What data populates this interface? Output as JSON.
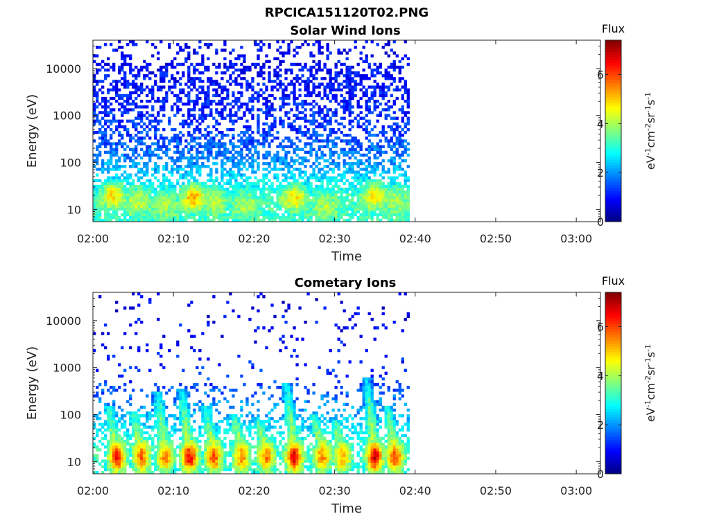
{
  "figure": {
    "title": "RPCICA151120T02.PNG"
  },
  "chart_data": [
    {
      "type": "heatmap",
      "title": "Solar Wind Ions",
      "xlabel": "Time",
      "ylabel": "Energy (eV)",
      "x_ticks": [
        "02:00",
        "02:10",
        "02:20",
        "02:30",
        "02:40",
        "02:50",
        "03:00"
      ],
      "y_ticks": [
        "10",
        "100",
        "1000",
        "10000"
      ],
      "y_scale": "log",
      "ylim": [
        5.5,
        40000
      ],
      "xlim_minutes": [
        0,
        63
      ],
      "data_end_minutes": 39.3,
      "colorbar": {
        "title": "Flux",
        "label_parts": [
          "eV",
          "-1",
          "cm",
          "-2",
          "sr",
          "-1",
          "s",
          "-1"
        ],
        "ticks": [
          "0",
          "2",
          "4",
          "6"
        ],
        "range": [
          0,
          7.4
        ],
        "colormap": "jet"
      },
      "background_profile": [
        {
          "energy": 6,
          "flux": 3.2
        },
        {
          "energy": 15,
          "flux": 3.3
        },
        {
          "energy": 40,
          "flux": 2.7
        },
        {
          "energy": 100,
          "flux": 2.0
        },
        {
          "energy": 300,
          "flux": 1.5
        },
        {
          "energy": 1000,
          "flux": 1.2
        },
        {
          "energy": 5000,
          "flux": 1.0
        },
        {
          "energy": 20000,
          "flux": 0.9
        }
      ],
      "enhancements": [
        {
          "t": 2.5,
          "energy": 20,
          "flux": 4.8
        },
        {
          "t": 5.5,
          "energy": 15,
          "flux": 4.2
        },
        {
          "t": 9.0,
          "energy": 12,
          "flux": 4.0
        },
        {
          "t": 12.5,
          "energy": 18,
          "flux": 5.2
        },
        {
          "t": 15.0,
          "energy": 15,
          "flux": 4.2
        },
        {
          "t": 19.0,
          "energy": 12,
          "flux": 4.0
        },
        {
          "t": 25.0,
          "energy": 18,
          "flux": 4.8
        },
        {
          "t": 29.0,
          "energy": 12,
          "flux": 4.0
        },
        {
          "t": 35.0,
          "energy": 20,
          "flux": 4.8
        },
        {
          "t": 37.5,
          "energy": 15,
          "flux": 4.0
        }
      ]
    },
    {
      "type": "heatmap",
      "title": "Cometary Ions",
      "xlabel": "Time",
      "ylabel": "Energy (eV)",
      "x_ticks": [
        "02:00",
        "02:10",
        "02:20",
        "02:30",
        "02:40",
        "02:50",
        "03:00"
      ],
      "y_ticks": [
        "10",
        "100",
        "1000",
        "10000"
      ],
      "y_scale": "log",
      "ylim": [
        5.5,
        40000
      ],
      "xlim_minutes": [
        0,
        63
      ],
      "data_end_minutes": 39.3,
      "colorbar": {
        "title": "Flux",
        "label_parts": [
          "eV",
          "-1",
          "cm",
          "-2",
          "sr",
          "-1",
          "s",
          "-1"
        ],
        "ticks": [
          "0",
          "2",
          "4",
          "6"
        ],
        "range": [
          0,
          7.4
        ],
        "colormap": "jet"
      },
      "background_profile": [
        {
          "energy": 6,
          "flux": 3.0
        },
        {
          "energy": 20,
          "flux": 3.2
        },
        {
          "energy": 60,
          "flux": 2.5
        },
        {
          "energy": 150,
          "flux": 2.0
        },
        {
          "energy": 500,
          "flux": 1.3
        },
        {
          "energy": 3000,
          "flux": 1.0
        },
        {
          "energy": 20000,
          "flux": 0.8
        }
      ],
      "bursts": [
        {
          "t": 3.0,
          "peak_flux": 6.6,
          "top_energy": 150
        },
        {
          "t": 6.0,
          "peak_flux": 5.8,
          "top_energy": 120
        },
        {
          "t": 9.0,
          "peak_flux": 5.6,
          "top_energy": 300
        },
        {
          "t": 12.0,
          "peak_flux": 6.6,
          "top_energy": 350
        },
        {
          "t": 15.0,
          "peak_flux": 6.0,
          "top_energy": 150
        },
        {
          "t": 18.5,
          "peak_flux": 5.6,
          "top_energy": 100
        },
        {
          "t": 21.5,
          "peak_flux": 5.6,
          "top_energy": 80
        },
        {
          "t": 25.0,
          "peak_flux": 6.8,
          "top_energy": 500
        },
        {
          "t": 28.5,
          "peak_flux": 5.6,
          "top_energy": 100
        },
        {
          "t": 31.0,
          "peak_flux": 5.2,
          "top_energy": 80
        },
        {
          "t": 35.0,
          "peak_flux": 6.8,
          "top_energy": 600
        },
        {
          "t": 37.5,
          "peak_flux": 6.0,
          "top_energy": 150
        }
      ]
    }
  ]
}
